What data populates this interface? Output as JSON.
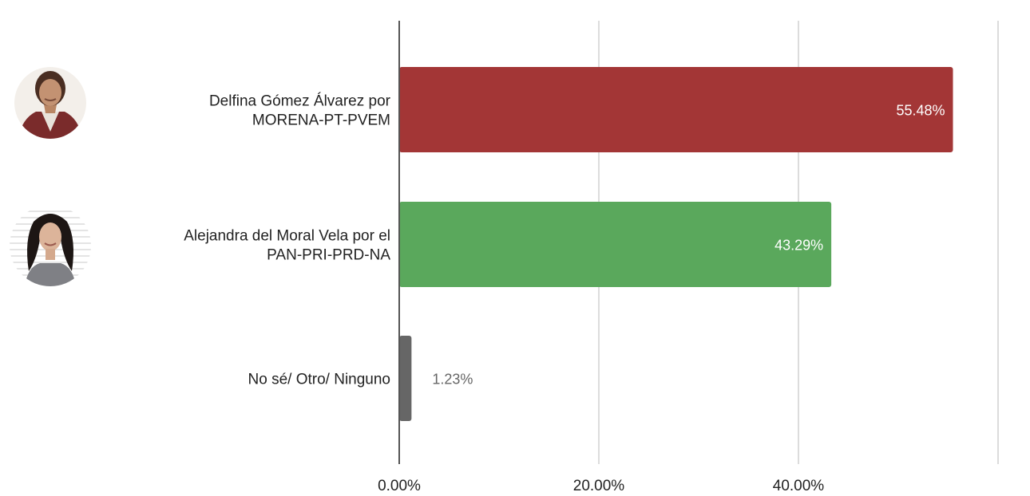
{
  "chart_data": {
    "type": "bar",
    "orientation": "horizontal",
    "title": "",
    "xlabel": "",
    "ylabel": "",
    "xlim": [
      0,
      60
    ],
    "grid": true,
    "legend": "none",
    "x_ticks": [
      {
        "value": 0,
        "label": "0.00%"
      },
      {
        "value": 20,
        "label": "20.00%"
      },
      {
        "value": 40,
        "label": "40.00%"
      },
      {
        "value": 60,
        "label": ""
      }
    ],
    "bars": [
      {
        "lines": [
          "Delfina Gómez Álvarez por",
          "MORENA-PT-PVEM"
        ],
        "value": 55.48,
        "value_label": "55.48%",
        "color": "#a33636",
        "label_inside": true,
        "avatar": "candidate-photo-delfina"
      },
      {
        "lines": [
          "Alejandra del Moral Vela por el",
          "PAN-PRI-PRD-NA"
        ],
        "value": 43.29,
        "value_label": "43.29%",
        "color": "#5aa85c",
        "label_inside": true,
        "avatar": "candidate-photo-alejandra"
      },
      {
        "lines": [
          "No sé/ Otro/ Ninguno"
        ],
        "value": 1.23,
        "value_label": "1.23%",
        "color": "#666666",
        "label_inside": false,
        "avatar": ""
      }
    ]
  }
}
